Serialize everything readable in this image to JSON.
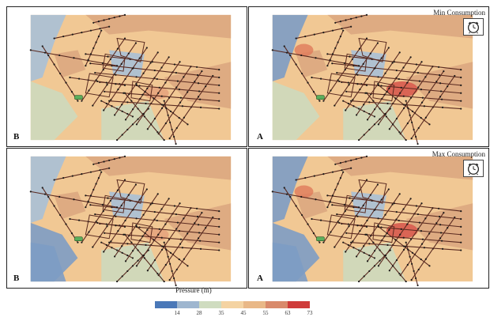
{
  "panels": [
    {
      "label": "B",
      "consumption": ""
    },
    {
      "label": "A",
      "consumption": "Min Consumption"
    },
    {
      "label": "B",
      "consumption": ""
    },
    {
      "label": "A",
      "consumption": "Max Consumption"
    }
  ],
  "legend": {
    "title": "Pressure (m)",
    "ticks": [
      "14",
      "28",
      "35",
      "45",
      "55",
      "63",
      "73"
    ],
    "colors": [
      "#4a78b8",
      "#9eb6cf",
      "#cfdcc0",
      "#f4d3a2",
      "#e9b887",
      "#d98a6b",
      "#cf3c3a"
    ]
  },
  "colors": {
    "network": "#5a2a20",
    "node": "#1a1a1a",
    "blue_zone": "#7d9cc4",
    "light_blue": "#a9c0d6",
    "green_zone": "#cdd9bd",
    "orange_zone": "#f1c894",
    "brown_zone": "#dba77f",
    "red_zone": "#d6544a"
  },
  "icons": {
    "clock": "alarm-clock-icon"
  }
}
